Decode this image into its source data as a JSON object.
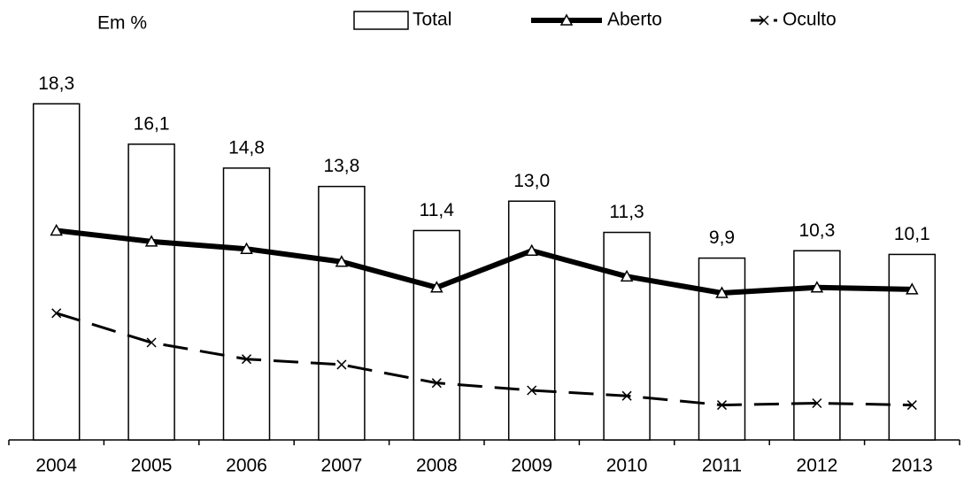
{
  "chart_data": {
    "type": "bar",
    "unit_label": "Em %",
    "categories": [
      "2004",
      "2005",
      "2006",
      "2007",
      "2008",
      "2009",
      "2010",
      "2011",
      "2012",
      "2013"
    ],
    "ylim": [
      0,
      20
    ],
    "legend": "top",
    "series": [
      {
        "name": "Total",
        "type": "bar",
        "color": "#ffffff",
        "values": [
          18.3,
          16.1,
          14.8,
          13.8,
          11.4,
          13.0,
          11.3,
          9.9,
          10.3,
          10.1
        ],
        "value_labels": [
          "18,3",
          "16,1",
          "14,8",
          "13,8",
          "11,4",
          "13,0",
          "11,3",
          "9,9",
          "10,3",
          "10,1"
        ]
      },
      {
        "name": "Aberto",
        "type": "line",
        "marker": "triangle",
        "dashed": false,
        "color": "#000000",
        "values": [
          11.4,
          10.8,
          10.4,
          9.7,
          8.3,
          10.3,
          8.9,
          8.0,
          8.3,
          8.2
        ]
      },
      {
        "name": "Oculto",
        "type": "line",
        "marker": "x",
        "dashed": true,
        "color": "#000000",
        "values": [
          6.9,
          5.3,
          4.4,
          4.1,
          3.1,
          2.7,
          2.4,
          1.9,
          2.0,
          1.9
        ]
      }
    ]
  }
}
